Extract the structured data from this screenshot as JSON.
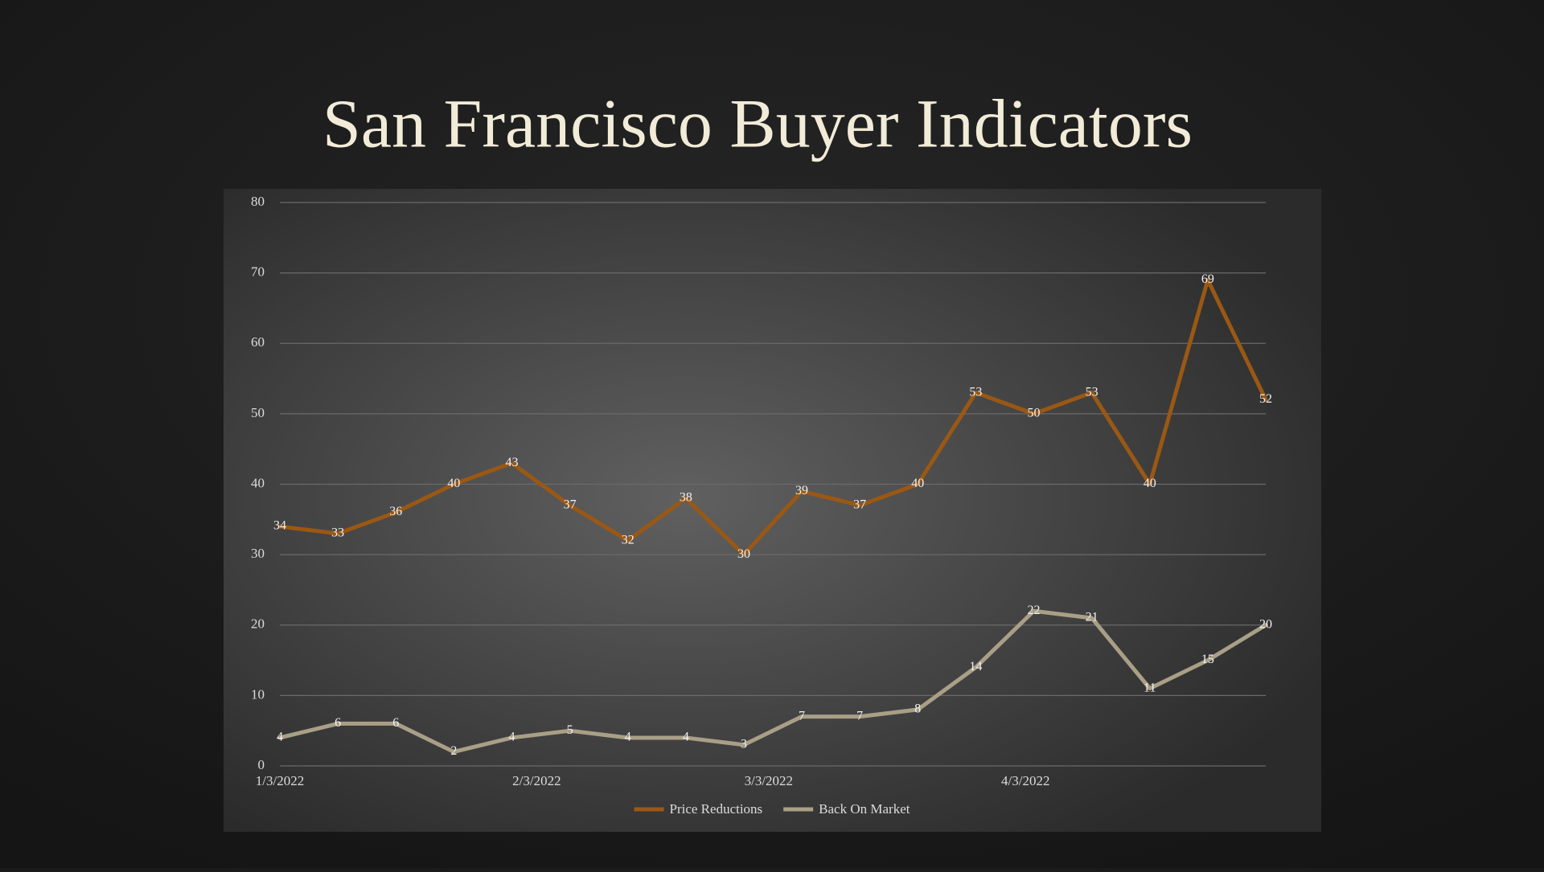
{
  "chart_data": {
    "type": "line",
    "title": "San Francisco Buyer Indicators",
    "x": [
      "1/3/2022",
      "1/10/2022",
      "1/17/2022",
      "1/24/2022",
      "1/31/2022",
      "2/7/2022",
      "2/14/2022",
      "2/21/2022",
      "2/28/2022",
      "3/7/2022",
      "3/14/2022",
      "3/21/2022",
      "3/28/2022",
      "4/4/2022",
      "4/11/2022",
      "4/18/2022",
      "4/25/2022",
      "5/2/2022"
    ],
    "series": [
      {
        "name": "Price Reductions",
        "color": "#9a5814",
        "values": [
          34,
          33,
          36,
          40,
          43,
          37,
          32,
          38,
          30,
          39,
          37,
          40,
          53,
          50,
          53,
          40,
          69,
          52
        ]
      },
      {
        "name": "Back On Market",
        "color": "#a99f86",
        "values": [
          4,
          6,
          6,
          2,
          4,
          5,
          4,
          4,
          3,
          7,
          7,
          8,
          14,
          22,
          21,
          11,
          15,
          20
        ]
      }
    ],
    "xlim": [
      "1/3/2022",
      "5/2/2022"
    ],
    "xticks": [
      "1/3/2022",
      "2/3/2022",
      "3/3/2022",
      "4/3/2022"
    ],
    "ylim": [
      0,
      80
    ],
    "yticks": [
      0,
      10,
      20,
      30,
      40,
      50,
      60,
      70,
      80
    ],
    "grid": true,
    "legend": "bottom"
  }
}
